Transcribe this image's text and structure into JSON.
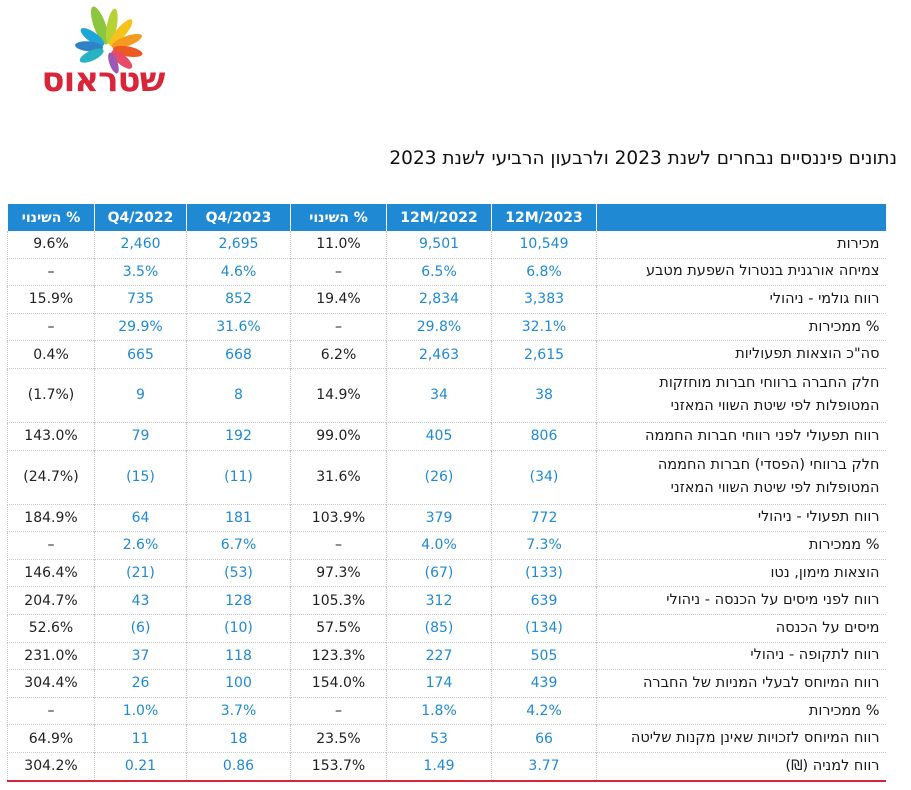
{
  "logo": {
    "text": "שטראוס"
  },
  "title": "נתונים פיננסיים נבחרים לשנת 2023 ולרבעון הרביעי לשנת 2023",
  "table": {
    "headers": [
      "",
      "12M/2023",
      "12M/2022",
      "% השינוי",
      "Q4/2023",
      "Q4/2022",
      "% השינוי"
    ],
    "rows": [
      {
        "label": "מכירות",
        "v": [
          "10,549",
          "9,501",
          "11.0%",
          "2,695",
          "2,460",
          "9.6%"
        ]
      },
      {
        "label": "צמיחה אורגנית בנטרול השפעת מטבע",
        "v": [
          "6.8%",
          "6.5%",
          "–",
          "4.6%",
          "3.5%",
          "–"
        ]
      },
      {
        "label": "רווח גולמי - ניהולי",
        "v": [
          "3,383",
          "2,834",
          "19.4%",
          "852",
          "735",
          "15.9%"
        ]
      },
      {
        "label": "% ממכירות",
        "v": [
          "32.1%",
          "29.8%",
          "–",
          "31.6%",
          "29.9%",
          "–"
        ]
      },
      {
        "label": "סה\"כ הוצאות תפעוליות",
        "v": [
          "2,615",
          "2,463",
          "6.2%",
          "668",
          "665",
          "0.4%"
        ]
      },
      {
        "label": "חלק החברה ברווחי חברות מוחזקות המטופלות לפי שיטת השווי המאזני",
        "v": [
          "38",
          "34",
          "14.9%",
          "8",
          "9",
          "(1.7%)"
        ],
        "tall": true
      },
      {
        "label": "רווח תפעולי לפני רווחי חברות החממה",
        "v": [
          "806",
          "405",
          "99.0%",
          "192",
          "79",
          "143.0%"
        ]
      },
      {
        "label": "חלק ברווחי (הפסדי) חברות החממה המטופלות לפי שיטת השווי המאזני",
        "v": [
          "(34)",
          "(26)",
          "31.6%",
          "(11)",
          "(15)",
          "(24.7%)"
        ],
        "tall": true
      },
      {
        "label": "רווח תפעולי - ניהולי",
        "v": [
          "772",
          "379",
          "103.9%",
          "181",
          "64",
          "184.9%"
        ]
      },
      {
        "label": "% ממכירות",
        "v": [
          "7.3%",
          "4.0%",
          "–",
          "6.7%",
          "2.6%",
          "–"
        ]
      },
      {
        "label": "הוצאות מימון, נטו",
        "v": [
          "(133)",
          "(67)",
          "97.3%",
          "(53)",
          "(21)",
          "146.4%"
        ]
      },
      {
        "label": "רווח לפני מיסים על הכנסה - ניהולי",
        "v": [
          "639",
          "312",
          "105.3%",
          "128",
          "43",
          "204.7%"
        ]
      },
      {
        "label": "מיסים על הכנסה",
        "v": [
          "(134)",
          "(85)",
          "57.5%",
          "(10)",
          "(6)",
          "52.6%"
        ]
      },
      {
        "label": "רווח לתקופה - ניהולי",
        "v": [
          "505",
          "227",
          "123.3%",
          "118",
          "37",
          "231.0%"
        ]
      },
      {
        "label": "רווח המיוחס לבעלי המניות של החברה",
        "v": [
          "439",
          "174",
          "154.0%",
          "100",
          "26",
          "304.4%"
        ]
      },
      {
        "label": "% ממכירות",
        "v": [
          "4.2%",
          "1.8%",
          "–",
          "3.7%",
          "1.0%",
          "–"
        ]
      },
      {
        "label": "רווח המיוחס לזכויות שאינן מקנות שליטה",
        "v": [
          "66",
          "53",
          "23.5%",
          "18",
          "11",
          "64.9%"
        ]
      },
      {
        "label": "רווח למניה (₪)",
        "v": [
          "3.77",
          "1.49",
          "153.7%",
          "0.86",
          "0.21",
          "304.2%"
        ]
      }
    ]
  },
  "colors": {
    "header_bg": "#1f8ad3",
    "value_blue": "#1f8ad3",
    "accent_red": "#d9253a"
  }
}
